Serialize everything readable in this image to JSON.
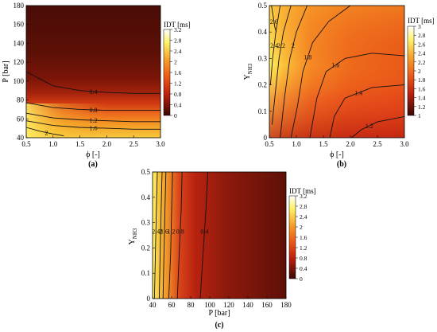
{
  "figure": {
    "panels": [
      {
        "label": "(a)",
        "xlabel": "ϕ [-]",
        "ylabel": "P [bar]",
        "colorbar_title": "IDT [ms]",
        "xticks": [
          "0.5",
          "1.0",
          "1.5",
          "2.0",
          "2.5",
          "3.0"
        ],
        "yticks": [
          "40",
          "60",
          "80",
          "100",
          "120",
          "140",
          "160",
          "180"
        ],
        "cbar_ticks": [
          "3.2",
          "2.8",
          "2.4",
          "2",
          "1.6",
          "1.2",
          "0.8",
          "0.4",
          "0"
        ],
        "contour_labels": [
          "0.4",
          "0.8",
          "1.2",
          "1.6",
          "2"
        ]
      },
      {
        "label": "(b)",
        "xlabel": "ϕ [-]",
        "ylabel": "Y",
        "ylabel_sub": "NH3",
        "colorbar_title": "IDT [ms]",
        "xticks": [
          "0.5",
          "1.0",
          "1.5",
          "2.0",
          "2.5",
          "3.0"
        ],
        "yticks": [
          "0",
          "0.1",
          "0.2",
          "0.3",
          "0.4",
          "0.5"
        ],
        "cbar_ticks": [
          "3",
          "2.8",
          "2.6",
          "2.4",
          "2.2",
          "2",
          "1.8",
          "1.6",
          "1.4",
          "1.2",
          "1"
        ],
        "contour_labels": [
          "2.6",
          "2.4",
          "2.2",
          "2",
          "1.8",
          "1.6",
          "1.4",
          "1.2"
        ]
      },
      {
        "label": "(c)",
        "xlabel": "P [bar]",
        "ylabel": "Y",
        "ylabel_sub": "NH3",
        "colorbar_title": "IDT [ms]",
        "xticks": [
          "40",
          "60",
          "80",
          "100",
          "120",
          "140",
          "160",
          "180"
        ],
        "yticks": [
          "0",
          "0.1",
          "0.2",
          "0.3",
          "0.4",
          "0.5"
        ],
        "cbar_ticks": [
          "3.2",
          "2.8",
          "2.4",
          "2",
          "1.6",
          "1.2",
          "0.8",
          "0.4",
          "0"
        ],
        "contour_labels": [
          "2.4",
          "2",
          "1.6",
          "1.2",
          "0.8",
          "0.4"
        ]
      }
    ]
  },
  "chart_data": [
    {
      "type": "heatmap",
      "title": "",
      "label": "(a)",
      "xlabel": "ϕ [-]",
      "ylabel": "P [bar]",
      "xlim": [
        0.5,
        3.0
      ],
      "ylim": [
        40,
        180
      ],
      "colorbar": {
        "title": "IDT [ms]",
        "range": [
          0,
          3.2
        ],
        "colormap": "hot"
      },
      "contours": [
        {
          "level": 0.4,
          "x": [
            0.5,
            1.0,
            1.5,
            2.0,
            2.5,
            3.0
          ],
          "y": [
            110,
            95,
            90,
            88,
            87,
            87
          ]
        },
        {
          "level": 0.8,
          "x": [
            0.5,
            1.0,
            1.5,
            2.0,
            2.5,
            3.0
          ],
          "y": [
            77,
            72,
            70,
            69,
            69,
            69
          ]
        },
        {
          "level": 1.2,
          "x": [
            0.5,
            1.0,
            1.5,
            2.0,
            2.5,
            3.0
          ],
          "y": [
            66,
            61,
            59,
            58,
            57,
            57
          ]
        },
        {
          "level": 1.6,
          "x": [
            0.5,
            1.0,
            1.5,
            2.0,
            2.5,
            3.0
          ],
          "y": [
            58,
            53,
            51,
            50,
            49,
            49
          ]
        },
        {
          "level": 2.0,
          "x": [
            0.5,
            0.75,
            1.0,
            1.2
          ],
          "y": [
            51,
            47,
            44,
            42
          ]
        }
      ]
    },
    {
      "type": "heatmap",
      "title": "",
      "label": "(b)",
      "xlabel": "ϕ [-]",
      "ylabel": "Y_NH3",
      "xlim": [
        0.5,
        3.0
      ],
      "ylim": [
        0,
        0.5
      ],
      "colorbar": {
        "title": "IDT [ms]",
        "range": [
          1,
          3
        ],
        "colormap": "hot"
      },
      "contours": [
        {
          "level": 2.6,
          "x": [
            0.54,
            0.57,
            0.6,
            0.63
          ],
          "y": [
            0.5,
            0.46,
            0.42,
            0.4
          ]
        },
        {
          "level": 2.4,
          "x": [
            0.7,
            0.62,
            0.56,
            0.52
          ],
          "y": [
            0.5,
            0.4,
            0.3,
            0.2
          ]
        },
        {
          "level": 2.2,
          "x": [
            0.9,
            0.76,
            0.68,
            0.6,
            0.55
          ],
          "y": [
            0.5,
            0.4,
            0.3,
            0.15,
            0.05
          ]
        },
        {
          "level": 2.0,
          "x": [
            1.2,
            1.0,
            0.88,
            0.78,
            0.7
          ],
          "y": [
            0.5,
            0.4,
            0.3,
            0.15,
            0.0
          ]
        },
        {
          "level": 1.8,
          "x": [
            2.0,
            1.6,
            1.3,
            1.12,
            1.02,
            0.9
          ],
          "y": [
            0.5,
            0.44,
            0.36,
            0.25,
            0.12,
            0.0
          ]
        },
        {
          "level": 1.6,
          "x": [
            3.0,
            2.4,
            1.9,
            1.55,
            1.38,
            1.25
          ],
          "y": [
            0.31,
            0.32,
            0.3,
            0.25,
            0.15,
            0.0
          ]
        },
        {
          "level": 1.4,
          "x": [
            3.0,
            2.4,
            1.9,
            1.7,
            1.62
          ],
          "y": [
            0.2,
            0.19,
            0.15,
            0.08,
            0.0
          ]
        },
        {
          "level": 1.2,
          "x": [
            3.0,
            2.5,
            2.2,
            2.02
          ],
          "y": [
            0.08,
            0.06,
            0.03,
            0.0
          ]
        }
      ]
    },
    {
      "type": "heatmap",
      "title": "",
      "label": "(c)",
      "xlabel": "P [bar]",
      "ylabel": "Y_NH3",
      "xlim": [
        40,
        180
      ],
      "ylim": [
        0,
        0.5
      ],
      "colorbar": {
        "title": "IDT [ms]",
        "range": [
          0,
          3.2
        ],
        "colormap": "hot"
      },
      "contours": [
        {
          "level": 2.4,
          "x": [
            45,
            44,
            43,
            42
          ],
          "y": [
            0.5,
            0.35,
            0.18,
            0.0
          ]
        },
        {
          "level": 2.0,
          "x": [
            50,
            49,
            48,
            47
          ],
          "y": [
            0.5,
            0.35,
            0.18,
            0.0
          ]
        },
        {
          "level": 1.6,
          "x": [
            54,
            53,
            52,
            51
          ],
          "y": [
            0.5,
            0.35,
            0.18,
            0.0
          ]
        },
        {
          "level": 1.2,
          "x": [
            61,
            60,
            59,
            57
          ],
          "y": [
            0.5,
            0.35,
            0.18,
            0.0
          ]
        },
        {
          "level": 0.8,
          "x": [
            71,
            70,
            68,
            66
          ],
          "y": [
            0.5,
            0.35,
            0.18,
            0.0
          ]
        },
        {
          "level": 0.4,
          "x": [
            98,
            96,
            93,
            90
          ],
          "y": [
            0.5,
            0.35,
            0.18,
            0.0
          ]
        }
      ]
    }
  ]
}
